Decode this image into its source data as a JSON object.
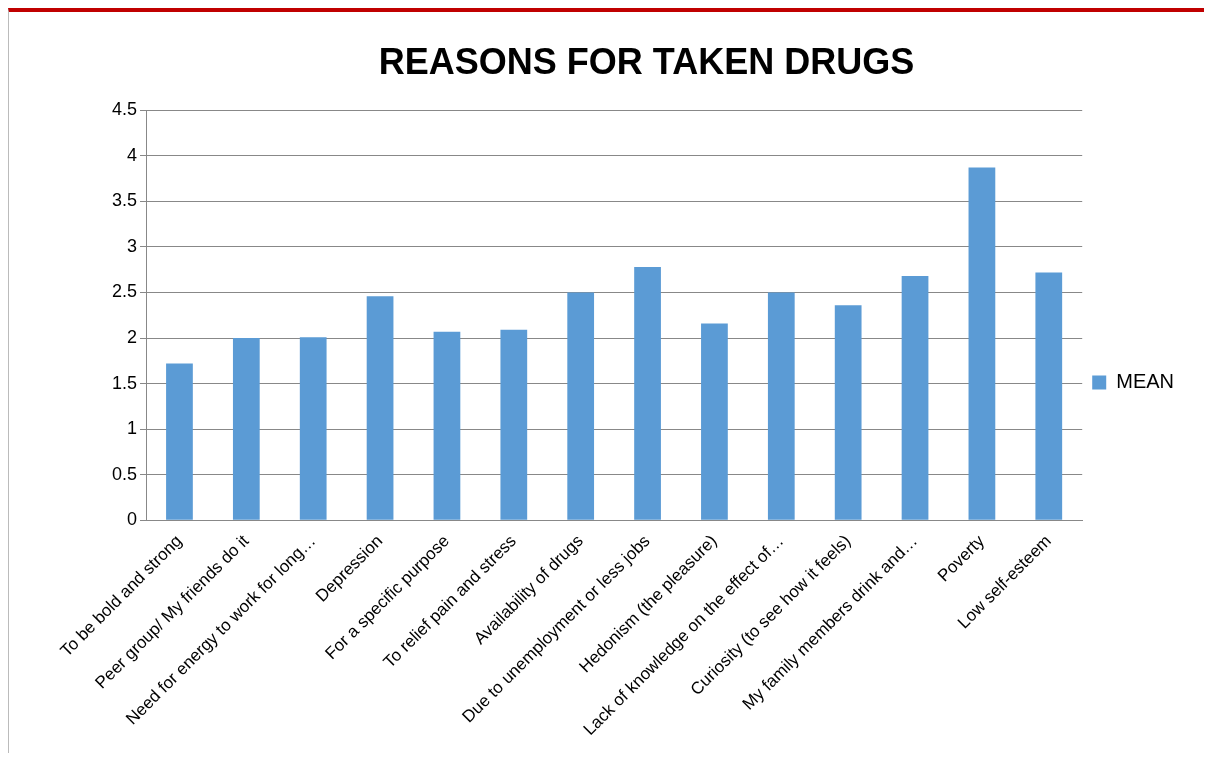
{
  "chart_data": {
    "type": "bar",
    "title": "REASONS FOR TAKEN DRUGS",
    "categories": [
      "To be bold and strong",
      "Peer group/ My friends do it",
      "Need for energy to work for long…",
      "Depression",
      "For a specific purpose",
      "To relief pain and stress",
      "Availability of drugs",
      "Due to unemployment or less jobs",
      "Hedonism (the pleasure)",
      "Lack of knowledge on the effect of…",
      "Curiosity (to see how it feels)",
      "My family members drink and…",
      "Poverty",
      "Low self-esteem"
    ],
    "series": [
      {
        "name": "MEAN",
        "color": "#5b9bd5",
        "values": [
          1.72,
          2.0,
          2.01,
          2.46,
          2.07,
          2.09,
          2.5,
          2.78,
          2.16,
          2.5,
          2.36,
          2.68,
          3.87,
          2.72
        ]
      }
    ],
    "ylim": [
      0,
      4.5
    ],
    "yticks": [
      0,
      0.5,
      1,
      1.5,
      2,
      2.5,
      3,
      3.5,
      4,
      4.5
    ],
    "grid": "y",
    "legend": "right"
  }
}
